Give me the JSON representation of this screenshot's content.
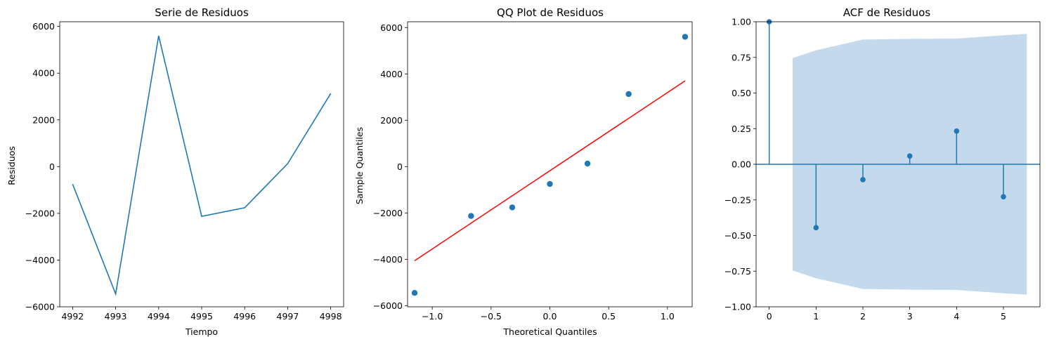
{
  "chart_data": [
    {
      "type": "line",
      "title": "Serie de Residuos",
      "xlabel": "Tiempo",
      "ylabel": "Residuos",
      "x": [
        4992,
        4993,
        4994,
        4995,
        4996,
        4997,
        4998
      ],
      "series": [
        {
          "values": [
            -750,
            -5450,
            5600,
            -2130,
            -1760,
            130,
            3130
          ],
          "color": "#1f77b4"
        }
      ],
      "xlim": [
        4991.7,
        4998.3
      ],
      "ylim": [
        -6000,
        6200
      ],
      "xticks": [
        4992,
        4993,
        4994,
        4995,
        4996,
        4997,
        4998
      ],
      "yticks": [
        -6000,
        -4000,
        -2000,
        0,
        2000,
        4000,
        6000
      ],
      "grid": false,
      "legend": "none"
    },
    {
      "type": "scatter",
      "title": "QQ Plot de Residuos",
      "xlabel": "Theoretical Quantiles",
      "ylabel": "Sample Quantiles",
      "points": {
        "x": [
          -1.15,
          -0.67,
          -0.32,
          0.0,
          0.32,
          0.67,
          1.15
        ],
        "y": [
          -5450,
          -2130,
          -1760,
          -750,
          130,
          3130,
          5600
        ],
        "color": "#1f77b4"
      },
      "reference_line": {
        "x": [
          -1.15,
          1.15
        ],
        "y": [
          -4060,
          3700
        ],
        "color": "#ff0000"
      },
      "xlim": [
        -1.21,
        1.21
      ],
      "ylim": [
        -6050,
        6250
      ],
      "xticks": [
        -1.0,
        -0.5,
        0.0,
        0.5,
        1.0
      ],
      "yticks": [
        -6000,
        -4000,
        -2000,
        0,
        2000,
        4000,
        6000
      ],
      "grid": false,
      "legend": "none"
    },
    {
      "type": "stem",
      "title": "ACF de Residuos",
      "lags": [
        0,
        1,
        2,
        3,
        4,
        5
      ],
      "values": [
        1.0,
        -0.445,
        -0.108,
        0.058,
        0.233,
        -0.228
      ],
      "confidence_band": {
        "lags": [
          0.5,
          1,
          2,
          3,
          4,
          5,
          5.5
        ],
        "upper": [
          0.745,
          0.8,
          0.875,
          0.88,
          0.882,
          0.905,
          0.915
        ],
        "lower": [
          -0.745,
          -0.8,
          -0.875,
          -0.88,
          -0.882,
          -0.905,
          -0.915
        ],
        "color": "#c4d9ec"
      },
      "color": "#1f77b4",
      "xlim": [
        -0.28,
        5.78
      ],
      "ylim": [
        -1.0,
        1.0
      ],
      "xticks": [
        0,
        1,
        2,
        3,
        4,
        5
      ],
      "yticks": [
        -1.0,
        -0.75,
        -0.5,
        -0.25,
        0.0,
        0.25,
        0.5,
        0.75,
        1.0
      ],
      "ytick_labels": [
        "−1.00",
        "−0.75",
        "−0.50",
        "−0.25",
        "0.00",
        "0.25",
        "0.50",
        "0.75",
        "1.00"
      ],
      "grid": false,
      "legend": "none"
    }
  ]
}
